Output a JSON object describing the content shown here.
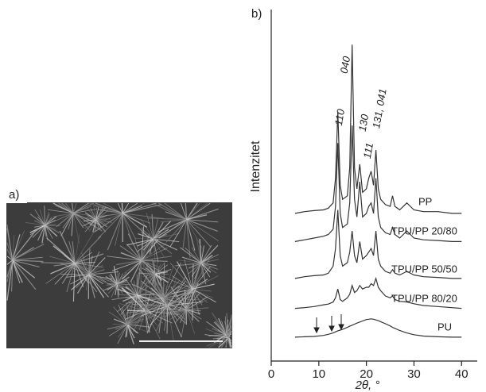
{
  "panel_a": {
    "label": "a)"
  },
  "chart_data": {
    "type": "line",
    "panel_label": "b)",
    "x_label": "2θ, °",
    "y_label": "Intenzitet",
    "x": [
      5,
      7,
      9,
      11,
      12,
      13,
      13.5,
      14,
      14.5,
      15,
      16,
      16.5,
      17,
      17.5,
      18,
      18.6,
      19.2,
      20,
      20.5,
      21,
      21.5,
      22,
      22.5,
      23,
      24,
      25,
      25.5,
      26,
      27,
      28.5,
      30,
      32,
      35,
      38,
      40
    ],
    "series": [
      {
        "name": "PP",
        "color": "#333333",
        "values": [
          42,
          42.5,
          42.8,
          43,
          43.5,
          45,
          52,
          71,
          50,
          46,
          47,
          55,
          90,
          55,
          49,
          56,
          48,
          49,
          52,
          54,
          50,
          60,
          49,
          46,
          44.5,
          44,
          47,
          44,
          43,
          45,
          43,
          42.5,
          42.5,
          42,
          42
        ]
      },
      {
        "name": "TPU/PP 20/80",
        "color": "#333333",
        "values": [
          34,
          34.5,
          35,
          35.5,
          36,
          37.5,
          44,
          62,
          42,
          38,
          39,
          45,
          67,
          46,
          41,
          51,
          41,
          42,
          44,
          45,
          42,
          52,
          41,
          38,
          36.5,
          36,
          38,
          36,
          35,
          37,
          35,
          34.5,
          34.3,
          34,
          34
        ]
      },
      {
        "name": "TPU/PP 50/50",
        "color": "#333333",
        "values": [
          23.5,
          24,
          24.3,
          24.5,
          25,
          27,
          32,
          43,
          30,
          27,
          28,
          31,
          37,
          30,
          28,
          34,
          29,
          30,
          31,
          32,
          30,
          37,
          29,
          27,
          25.5,
          25,
          26,
          25,
          24.5,
          25.5,
          24.5,
          24,
          23.8,
          23.5,
          23.5
        ]
      },
      {
        "name": "TPU/PP 80/20",
        "color": "#333333",
        "values": [
          15,
          15.2,
          15.5,
          16,
          16.2,
          16.8,
          18,
          20.5,
          17.5,
          17,
          18,
          19,
          21.5,
          19.5,
          20,
          21.5,
          20.5,
          21,
          21,
          22,
          21.5,
          23.5,
          21,
          20,
          18.5,
          18,
          18.5,
          17.5,
          17,
          16.8,
          16.3,
          15.8,
          15.5,
          15.2,
          15
        ]
      },
      {
        "name": "PU",
        "color": "#333333",
        "values": [
          6.8,
          6.9,
          7,
          7.3,
          7.6,
          8,
          8.3,
          8.6,
          8.8,
          9,
          9.6,
          9.9,
          10.2,
          10.5,
          10.8,
          11.1,
          11.4,
          11.8,
          11.9,
          12,
          11.9,
          11.7,
          11.5,
          11.2,
          10.6,
          10,
          9.6,
          9.3,
          8.7,
          8,
          7.5,
          7.1,
          6.9,
          6.8,
          6.8
        ]
      }
    ],
    "annotations": [
      "110",
      "040",
      "130",
      "111",
      "131, 041"
    ],
    "xlim": [
      0,
      43.3
    ],
    "xticks": [
      0,
      10,
      20,
      30,
      40
    ],
    "ylim": [
      0,
      100
    ]
  }
}
